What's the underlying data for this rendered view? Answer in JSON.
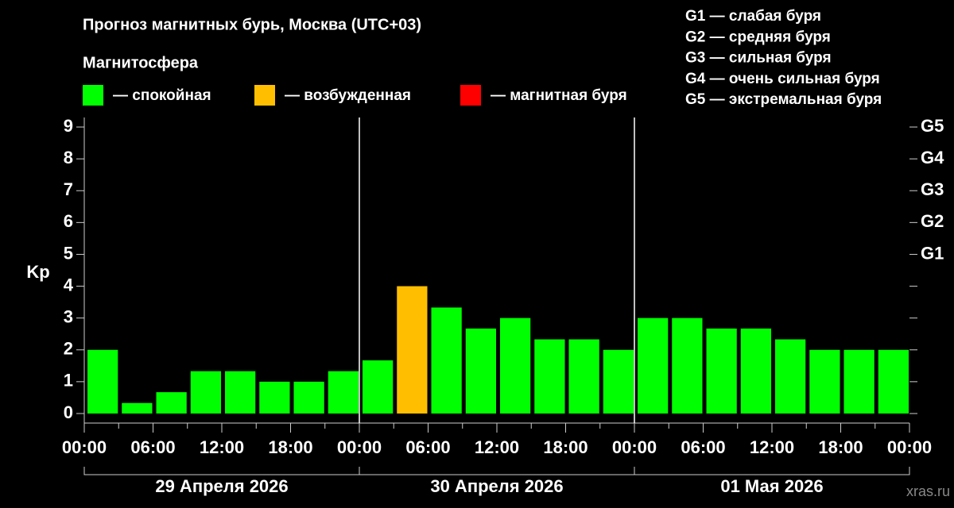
{
  "chart_data": {
    "type": "bar",
    "title": "Прогноз магнитных бурь, Москва (UTC+03)",
    "subtitle": "Магнитосфера",
    "legend_items": [
      {
        "label": "— спокойная",
        "color": "#00ff00"
      },
      {
        "label": "— возбужденная",
        "color": "#ffbf00"
      },
      {
        "label": "— магнитная буря",
        "color": "#ff0000"
      }
    ],
    "storm_scale": [
      "G1 — слабая буря",
      "G2 — средняя буря",
      "G3 — сильная буря",
      "G4 — очень сильная буря",
      "G5 — экстремальная буря"
    ],
    "ylabel": "Kp",
    "x": [
      0,
      3,
      6,
      9,
      12,
      15,
      18,
      21,
      24,
      27,
      30,
      33,
      36,
      39,
      42,
      45,
      48,
      51,
      54,
      57,
      60,
      63,
      66,
      69
    ],
    "values": [
      2,
      0.33,
      0.67,
      1.33,
      1.33,
      1,
      1,
      1.33,
      1.67,
      4,
      3.33,
      2.67,
      3,
      2.33,
      2.33,
      2,
      3,
      3,
      2.67,
      2.67,
      2.33,
      2,
      2,
      2
    ],
    "colors": [
      "#00ff00",
      "#00ff00",
      "#00ff00",
      "#00ff00",
      "#00ff00",
      "#00ff00",
      "#00ff00",
      "#00ff00",
      "#00ff00",
      "#ffbf00",
      "#00ff00",
      "#00ff00",
      "#00ff00",
      "#00ff00",
      "#00ff00",
      "#00ff00",
      "#00ff00",
      "#00ff00",
      "#00ff00",
      "#00ff00",
      "#00ff00",
      "#00ff00",
      "#00ff00",
      "#00ff00"
    ],
    "xlim": [
      0,
      72
    ],
    "ylim": [
      -0.3,
      9.3
    ],
    "yticks": [
      0,
      1,
      2,
      3,
      4,
      5,
      6,
      7,
      8,
      9
    ],
    "xticks": [
      {
        "value": 0,
        "label": "00:00"
      },
      {
        "value": 6,
        "label": "06:00"
      },
      {
        "value": 12,
        "label": "12:00"
      },
      {
        "value": 18,
        "label": "18:00"
      },
      {
        "value": 24,
        "label": "00:00"
      },
      {
        "value": 30,
        "label": "06:00"
      },
      {
        "value": 36,
        "label": "12:00"
      },
      {
        "value": 42,
        "label": "18:00"
      },
      {
        "value": 48,
        "label": "00:00"
      },
      {
        "value": 54,
        "label": "06:00"
      },
      {
        "value": 60,
        "label": "12:00"
      },
      {
        "value": 66,
        "label": "18:00"
      },
      {
        "value": 72,
        "label": "00:00"
      }
    ],
    "y2lim": [
      -0.3,
      9.3
    ],
    "y2ticks": [
      {
        "value": 5,
        "label": "G1"
      },
      {
        "value": 6,
        "label": "G2"
      },
      {
        "value": 7,
        "label": "G3"
      },
      {
        "value": 8,
        "label": "G4"
      },
      {
        "value": 9,
        "label": "G5"
      }
    ],
    "days": [
      {
        "label": "29 Апреля 2026",
        "from": 0,
        "to": 24
      },
      {
        "label": "30 Апреля 2026",
        "from": 24,
        "to": 48
      },
      {
        "label": "01 Мая 2026",
        "from": 48,
        "to": 72
      }
    ],
    "watermark": "xras.ru"
  }
}
